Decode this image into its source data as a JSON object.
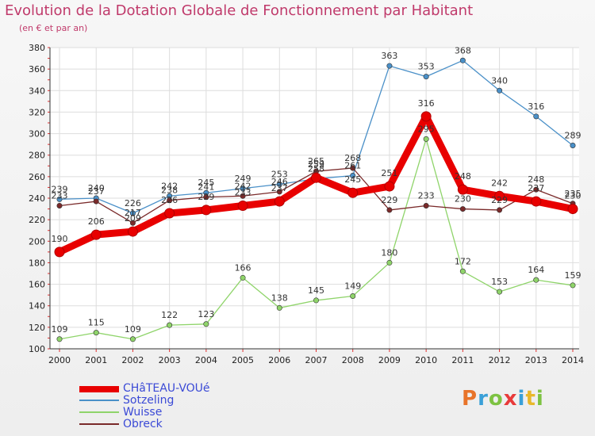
{
  "title": "Evolution de la Dotation Globale de Fonctionnement par Habitant",
  "subtitle": "(en € et par an)",
  "brand": {
    "text": "Proxiti",
    "letter_colors": [
      "#e8742a",
      "#3aa0d8",
      "#7dc242",
      "#e83a3a",
      "#3aa0d8",
      "#e8b82a",
      "#7dc242"
    ]
  },
  "chart_data": {
    "type": "line",
    "title": "Evolution de la Dotation Globale de Fonctionnement par Habitant",
    "ylabel": "(en € et par an)",
    "xlabel": "",
    "ylim": [
      100,
      380
    ],
    "yticks": [
      100,
      120,
      140,
      160,
      180,
      200,
      220,
      240,
      260,
      280,
      300,
      320,
      340,
      360,
      380
    ],
    "categories": [
      "2000",
      "2001",
      "2002",
      "2003",
      "2004",
      "2005",
      "2006",
      "2007",
      "2008",
      "2009",
      "2010",
      "2011",
      "2012",
      "2013",
      "2014"
    ],
    "series": [
      {
        "name": "CHâTEAU-VOUé",
        "color": "#e80000",
        "highlight": true,
        "values": [
          190,
          206,
          209,
          226,
          229,
          233,
          237,
          259,
          245,
          251,
          316,
          248,
          242,
          237,
          230
        ]
      },
      {
        "name": "Sotzeling",
        "color": "#4a90c8",
        "values": [
          239,
          240,
          226,
          242,
          245,
          249,
          253,
          258,
          261,
          363,
          353,
          368,
          340,
          316,
          289
        ]
      },
      {
        "name": "Wuisse",
        "color": "#8fd46a",
        "values": [
          109,
          115,
          109,
          122,
          123,
          166,
          138,
          145,
          149,
          180,
          295,
          172,
          153,
          164,
          159
        ]
      },
      {
        "name": "Obreck",
        "color": "#7a2a2a",
        "values": [
          233,
          237,
          217,
          238,
          241,
          242,
          246,
          265,
          268,
          229,
          233,
          230,
          229,
          248,
          235
        ]
      }
    ],
    "data_labels": {
      "CHâTEAU-VOUé": [
        "190",
        "206",
        "209",
        "226",
        "229",
        "233",
        "237",
        "259",
        "245",
        "251",
        "316",
        "248",
        "242",
        "237",
        "230"
      ],
      "Sotzeling": [
        "239",
        "240",
        "226",
        "242",
        "245",
        "249",
        "253",
        "258",
        "261",
        "363",
        "353",
        "368",
        "340",
        "316",
        "289"
      ],
      "Wuisse": [
        "109",
        "115",
        "109",
        "122",
        "123",
        "166",
        "138",
        "145",
        "149",
        "180",
        "295",
        "172",
        "153",
        "164",
        "159"
      ],
      "Obreck": [
        "233",
        "237",
        "217",
        "238",
        "241",
        "242",
        "246",
        "265",
        "268",
        "229",
        "233",
        "230",
        "229",
        "248",
        "235"
      ]
    },
    "grid": true,
    "legend_position": "bottom-left"
  },
  "legend": [
    {
      "label": "CHâTEAU-VOUé",
      "color": "#e80000"
    },
    {
      "label": "Sotzeling",
      "color": "#4a90c8"
    },
    {
      "label": "Wuisse",
      "color": "#8fd46a"
    },
    {
      "label": "Obreck",
      "color": "#7a2a2a"
    }
  ]
}
